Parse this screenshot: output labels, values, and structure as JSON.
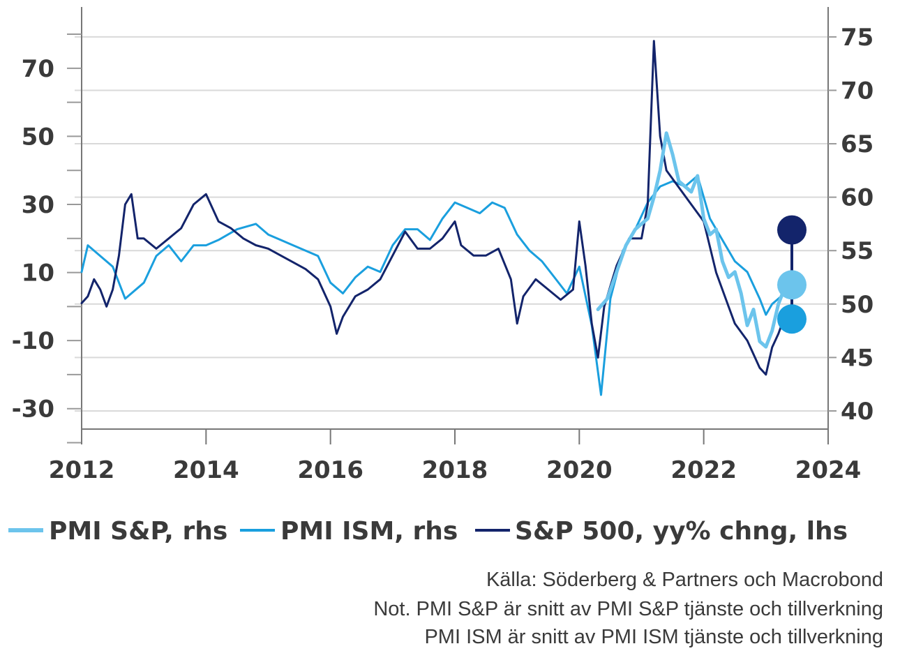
{
  "chart_data": {
    "type": "line",
    "title": "",
    "xlabel": "",
    "y_left": {
      "ticks": [
        70,
        50,
        30,
        10,
        -10,
        -30
      ],
      "tick_labels": [
        "70",
        "50",
        "30",
        "10",
        "-10",
        "-30"
      ],
      "range": [
        -36,
        88
      ]
    },
    "y_right": {
      "ticks": [
        75,
        70,
        65,
        60,
        55,
        50,
        45,
        40
      ],
      "tick_labels": [
        "75",
        "70",
        "65",
        "60",
        "55",
        "50",
        "45",
        "40"
      ],
      "range": [
        38.3,
        77.8
      ]
    },
    "x_axis": {
      "ticks": [
        2012,
        2014,
        2016,
        2018,
        2020,
        2022,
        2024
      ],
      "tick_labels": [
        "2012",
        "2014",
        "2016",
        "2018",
        "2020",
        "2022",
        "2024"
      ],
      "range": [
        2012,
        2024
      ]
    },
    "grid": true,
    "legend_position": "bottom",
    "series": [
      {
        "name": "PMI S&P, rhs",
        "axis": "right",
        "color": "#6cc4ec",
        "width": 5,
        "points": [
          [
            2020.3,
            49.5
          ],
          [
            2020.45,
            50.5
          ],
          [
            2020.6,
            53
          ],
          [
            2020.75,
            55.5
          ],
          [
            2020.9,
            57
          ],
          [
            2021.0,
            57.5
          ],
          [
            2021.1,
            58
          ],
          [
            2021.2,
            60
          ],
          [
            2021.3,
            62.5
          ],
          [
            2021.4,
            66
          ],
          [
            2021.5,
            64
          ],
          [
            2021.6,
            61.5
          ],
          [
            2021.7,
            61
          ],
          [
            2021.8,
            60.5
          ],
          [
            2021.9,
            62
          ],
          [
            2022.0,
            58
          ],
          [
            2022.1,
            56.5
          ],
          [
            2022.2,
            57
          ],
          [
            2022.3,
            54
          ],
          [
            2022.4,
            52.5
          ],
          [
            2022.5,
            53
          ],
          [
            2022.6,
            51
          ],
          [
            2022.7,
            48
          ],
          [
            2022.8,
            49.5
          ],
          [
            2022.9,
            46.5
          ],
          [
            2023.0,
            46
          ],
          [
            2023.1,
            47.5
          ],
          [
            2023.2,
            50
          ],
          [
            2023.3,
            51.5
          ]
        ],
        "end_marker": 51.8
      },
      {
        "name": "PMI ISM, rhs",
        "axis": "right",
        "color": "#1a9fde",
        "width": 3,
        "points": [
          [
            2012.0,
            53
          ],
          [
            2012.1,
            55.5
          ],
          [
            2012.3,
            54.5
          ],
          [
            2012.5,
            53.5
          ],
          [
            2012.7,
            50.5
          ],
          [
            2012.9,
            51.5
          ],
          [
            2013.0,
            52
          ],
          [
            2013.2,
            54.5
          ],
          [
            2013.4,
            55.5
          ],
          [
            2013.6,
            54
          ],
          [
            2013.8,
            55.5
          ],
          [
            2014.0,
            55.5
          ],
          [
            2014.2,
            56
          ],
          [
            2014.5,
            57
          ],
          [
            2014.8,
            57.5
          ],
          [
            2015.0,
            56.5
          ],
          [
            2015.2,
            56
          ],
          [
            2015.4,
            55.5
          ],
          [
            2015.6,
            55
          ],
          [
            2015.8,
            54.5
          ],
          [
            2016.0,
            52
          ],
          [
            2016.2,
            51
          ],
          [
            2016.4,
            52.5
          ],
          [
            2016.6,
            53.5
          ],
          [
            2016.8,
            53
          ],
          [
            2017.0,
            55.5
          ],
          [
            2017.2,
            57
          ],
          [
            2017.4,
            57
          ],
          [
            2017.6,
            56
          ],
          [
            2017.8,
            58
          ],
          [
            2018.0,
            59.5
          ],
          [
            2018.2,
            59
          ],
          [
            2018.4,
            58.5
          ],
          [
            2018.6,
            59.5
          ],
          [
            2018.8,
            59
          ],
          [
            2019.0,
            56.5
          ],
          [
            2019.2,
            55
          ],
          [
            2019.4,
            54
          ],
          [
            2019.6,
            52.5
          ],
          [
            2019.8,
            51
          ],
          [
            2020.0,
            53.5
          ],
          [
            2020.2,
            48
          ],
          [
            2020.35,
            41.5
          ],
          [
            2020.5,
            50.5
          ],
          [
            2020.7,
            55
          ],
          [
            2020.9,
            57
          ],
          [
            2021.1,
            59.5
          ],
          [
            2021.3,
            61
          ],
          [
            2021.5,
            61.5
          ],
          [
            2021.7,
            61
          ],
          [
            2021.9,
            62
          ],
          [
            2022.1,
            58
          ],
          [
            2022.3,
            56
          ],
          [
            2022.5,
            54
          ],
          [
            2022.7,
            53
          ],
          [
            2022.9,
            50.5
          ],
          [
            2023.0,
            49
          ],
          [
            2023.1,
            50
          ],
          [
            2023.2,
            50.5
          ],
          [
            2023.3,
            51
          ]
        ],
        "end_marker": 48.6
      },
      {
        "name": "S&P 500, yy% chng, lhs",
        "axis": "left",
        "color": "#13246b",
        "width": 3,
        "points": [
          [
            2012.0,
            1
          ],
          [
            2012.1,
            3
          ],
          [
            2012.2,
            8
          ],
          [
            2012.3,
            5
          ],
          [
            2012.4,
            0
          ],
          [
            2012.5,
            5
          ],
          [
            2012.6,
            15
          ],
          [
            2012.7,
            30
          ],
          [
            2012.8,
            33
          ],
          [
            2012.9,
            20
          ],
          [
            2013.0,
            20
          ],
          [
            2013.2,
            17
          ],
          [
            2013.4,
            20
          ],
          [
            2013.6,
            23
          ],
          [
            2013.8,
            30
          ],
          [
            2014.0,
            33
          ],
          [
            2014.2,
            25
          ],
          [
            2014.4,
            23
          ],
          [
            2014.6,
            20
          ],
          [
            2014.8,
            18
          ],
          [
            2015.0,
            17
          ],
          [
            2015.2,
            15
          ],
          [
            2015.4,
            13
          ],
          [
            2015.6,
            11
          ],
          [
            2015.8,
            8
          ],
          [
            2016.0,
            0
          ],
          [
            2016.1,
            -8
          ],
          [
            2016.2,
            -3
          ],
          [
            2016.4,
            3
          ],
          [
            2016.6,
            5
          ],
          [
            2016.8,
            8
          ],
          [
            2017.0,
            15
          ],
          [
            2017.2,
            22
          ],
          [
            2017.4,
            17
          ],
          [
            2017.6,
            17
          ],
          [
            2017.8,
            20
          ],
          [
            2018.0,
            25
          ],
          [
            2018.1,
            18
          ],
          [
            2018.3,
            15
          ],
          [
            2018.5,
            15
          ],
          [
            2018.7,
            17
          ],
          [
            2018.9,
            8
          ],
          [
            2019.0,
            -5
          ],
          [
            2019.1,
            3
          ],
          [
            2019.3,
            8
          ],
          [
            2019.5,
            5
          ],
          [
            2019.7,
            2
          ],
          [
            2019.9,
            5
          ],
          [
            2020.0,
            25
          ],
          [
            2020.1,
            12
          ],
          [
            2020.2,
            -5
          ],
          [
            2020.3,
            -15
          ],
          [
            2020.4,
            0
          ],
          [
            2020.6,
            12
          ],
          [
            2020.8,
            20
          ],
          [
            2021.0,
            20
          ],
          [
            2021.1,
            30
          ],
          [
            2021.2,
            78
          ],
          [
            2021.3,
            50
          ],
          [
            2021.4,
            40
          ],
          [
            2021.6,
            35
          ],
          [
            2021.8,
            30
          ],
          [
            2022.0,
            25
          ],
          [
            2022.2,
            10
          ],
          [
            2022.4,
            0
          ],
          [
            2022.5,
            -5
          ],
          [
            2022.7,
            -10
          ],
          [
            2022.9,
            -18
          ],
          [
            2023.0,
            -20
          ],
          [
            2023.1,
            -12
          ],
          [
            2023.2,
            -8
          ],
          [
            2023.3,
            -3
          ]
        ],
        "end_marker": 22.5
      }
    ]
  },
  "legend": {
    "items": [
      {
        "label": "PMI S&P, rhs",
        "color": "#6cc4ec"
      },
      {
        "label": "PMI ISM, rhs",
        "color": "#1a9fde"
      },
      {
        "label": "S&P 500, yy% chng, lhs",
        "color": "#13246b"
      }
    ]
  },
  "notes": {
    "source": "Källa: Söderberg & Partners och Macrobond",
    "note1": "Not. PMI S&P är snitt av PMI S&P tjänste och tillverkning",
    "note2": "PMI ISM är snitt av PMI ISM tjänste och tillverkning"
  },
  "colors": {
    "grid": "#d9d9d9",
    "axis": "#555555",
    "text": "#3a3a3a"
  }
}
